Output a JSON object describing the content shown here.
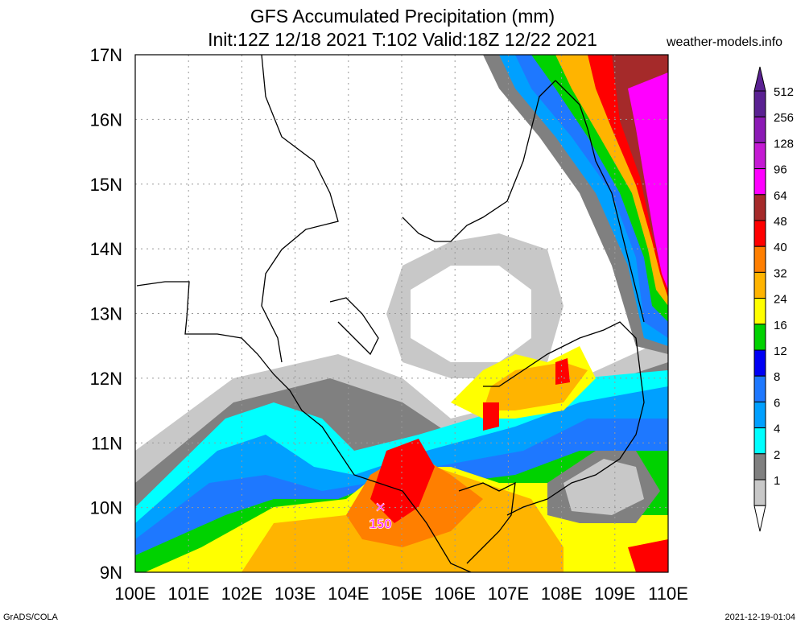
{
  "title": {
    "line1": "GFS Accumulated Precipitation (mm)",
    "line2": "Init:12Z 12/18 2021 T:102 Valid:18Z 12/22 2021"
  },
  "site": "weather-models.info",
  "footer": {
    "left": "GrADS/COLA",
    "right": "2021-12-19-01:04"
  },
  "axes": {
    "lat_labels": [
      "17N",
      "16N",
      "15N",
      "14N",
      "13N",
      "12N",
      "11N",
      "10N",
      "9N"
    ],
    "lon_labels": [
      "100E",
      "101E",
      "102E",
      "103E",
      "104E",
      "105E",
      "106E",
      "107E",
      "108E",
      "109E",
      "110E"
    ],
    "lat_range": [
      9,
      17
    ],
    "lon_range": [
      100,
      110
    ]
  },
  "marker": {
    "label": "150",
    "lat": 10.0,
    "lon": 104.6,
    "symbol": "×"
  },
  "colorbar": {
    "levels": [
      "512",
      "256",
      "128",
      "96",
      "64",
      "48",
      "40",
      "32",
      "24",
      "16",
      "12",
      "8",
      "6",
      "4",
      "2",
      "1"
    ],
    "colors": [
      "#5a2192",
      "#8b1ab5",
      "#c41ad3",
      "#ff00ff",
      "#a52a2a",
      "#ff0000",
      "#ff7f00",
      "#ffb400",
      "#ffff00",
      "#00d200",
      "#0000f5",
      "#1e78ff",
      "#00a0ff",
      "#00ffff",
      "#808080",
      "#c8c8c8"
    ]
  },
  "precip_palette": {
    "white": "#ffffff",
    "light_gray": "#c8c8c8",
    "gray": "#808080",
    "cyan": "#00ffff",
    "sky": "#00a0ff",
    "blue": "#1e78ff",
    "deep_blue": "#0000f5",
    "green": "#00d200",
    "yellow": "#ffff00",
    "gold": "#ffb400",
    "orange": "#ff7f00",
    "red": "#ff0000",
    "brown": "#a52a2a",
    "magenta": "#ff00ff"
  }
}
